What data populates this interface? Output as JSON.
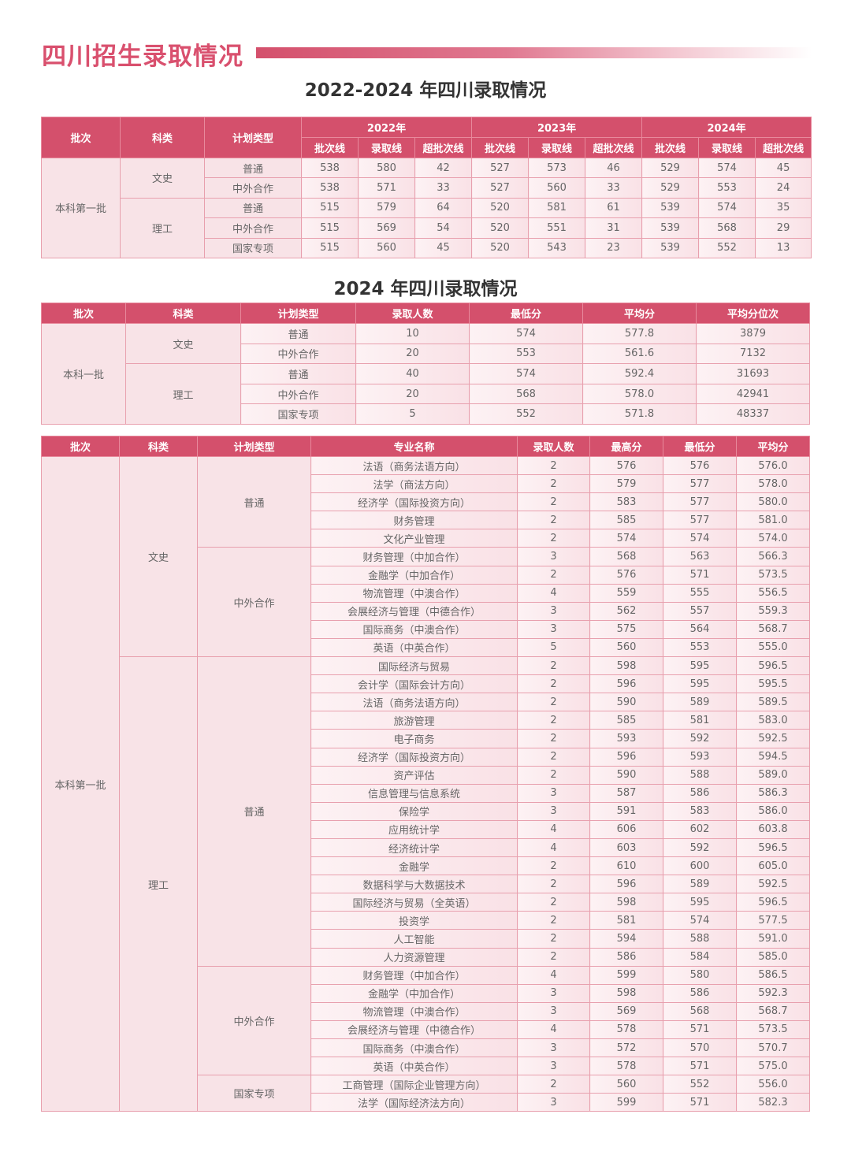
{
  "page": {
    "title": "四川招生录取情况",
    "colors": {
      "accent": "#d4506c",
      "title": "#d9506e",
      "cell_bg": "#fbe9ec"
    }
  },
  "table1": {
    "title": "2022-2024 年四川录取情况",
    "fixed_headers": [
      "批次",
      "科类",
      "计划类型"
    ],
    "years": [
      "2022年",
      "2023年",
      "2024年"
    ],
    "sub_headers": [
      "批次线",
      "录取线",
      "超批次线"
    ],
    "group_cols": 3,
    "rows": [
      [
        "本科第一批",
        "文史",
        "普通",
        "538",
        "580",
        "42",
        "527",
        "573",
        "46",
        "529",
        "574",
        "45"
      ],
      [
        "本科第一批",
        "文史",
        "中外合作",
        "538",
        "571",
        "33",
        "527",
        "560",
        "33",
        "529",
        "553",
        "24"
      ],
      [
        "本科第一批",
        "理工",
        "普通",
        "515",
        "579",
        "64",
        "520",
        "581",
        "61",
        "539",
        "574",
        "35"
      ],
      [
        "本科第一批",
        "理工",
        "中外合作",
        "515",
        "569",
        "54",
        "520",
        "551",
        "31",
        "539",
        "568",
        "29"
      ],
      [
        "本科第一批",
        "理工",
        "国家专项",
        "515",
        "560",
        "45",
        "520",
        "543",
        "23",
        "539",
        "552",
        "13"
      ]
    ]
  },
  "table2": {
    "title": "2024 年四川录取情况",
    "headers": [
      "批次",
      "科类",
      "计划类型",
      "录取人数",
      "最低分",
      "平均分",
      "平均分位次"
    ],
    "group_cols": 2,
    "rows": [
      [
        "本科一批",
        "文史",
        "普通",
        "10",
        "574",
        "577.8",
        "3879"
      ],
      [
        "本科一批",
        "文史",
        "中外合作",
        "20",
        "553",
        "561.6",
        "7132"
      ],
      [
        "本科一批",
        "理工",
        "普通",
        "40",
        "574",
        "592.4",
        "31693"
      ],
      [
        "本科一批",
        "理工",
        "中外合作",
        "20",
        "568",
        "578.0",
        "42941"
      ],
      [
        "本科一批",
        "理工",
        "国家专项",
        "5",
        "552",
        "571.8",
        "48337"
      ]
    ]
  },
  "table3": {
    "headers": [
      "批次",
      "科类",
      "计划类型",
      "专业名称",
      "录取人数",
      "最高分",
      "最低分",
      "平均分"
    ],
    "group_cols": 3,
    "rows": [
      [
        "本科第一批",
        "文史",
        "普通",
        "法语（商务法语方向）",
        "2",
        "576",
        "576",
        "576.0"
      ],
      [
        "本科第一批",
        "文史",
        "普通",
        "法学（商法方向）",
        "2",
        "579",
        "577",
        "578.0"
      ],
      [
        "本科第一批",
        "文史",
        "普通",
        "经济学（国际投资方向）",
        "2",
        "583",
        "577",
        "580.0"
      ],
      [
        "本科第一批",
        "文史",
        "普通",
        "财务管理",
        "2",
        "585",
        "577",
        "581.0"
      ],
      [
        "本科第一批",
        "文史",
        "普通",
        "文化产业管理",
        "2",
        "574",
        "574",
        "574.0"
      ],
      [
        "本科第一批",
        "文史",
        "中外合作",
        "财务管理（中加合作）",
        "3",
        "568",
        "563",
        "566.3"
      ],
      [
        "本科第一批",
        "文史",
        "中外合作",
        "金融学（中加合作）",
        "2",
        "576",
        "571",
        "573.5"
      ],
      [
        "本科第一批",
        "文史",
        "中外合作",
        "物流管理（中澳合作）",
        "4",
        "559",
        "555",
        "556.5"
      ],
      [
        "本科第一批",
        "文史",
        "中外合作",
        "会展经济与管理（中德合作）",
        "3",
        "562",
        "557",
        "559.3"
      ],
      [
        "本科第一批",
        "文史",
        "中外合作",
        "国际商务（中澳合作）",
        "3",
        "575",
        "564",
        "568.7"
      ],
      [
        "本科第一批",
        "文史",
        "中外合作",
        "英语（中英合作）",
        "5",
        "560",
        "553",
        "555.0"
      ],
      [
        "本科第一批",
        "理工",
        "普通",
        "国际经济与贸易",
        "2",
        "598",
        "595",
        "596.5"
      ],
      [
        "本科第一批",
        "理工",
        "普通",
        "会计学（国际会计方向）",
        "2",
        "596",
        "595",
        "595.5"
      ],
      [
        "本科第一批",
        "理工",
        "普通",
        "法语（商务法语方向）",
        "2",
        "590",
        "589",
        "589.5"
      ],
      [
        "本科第一批",
        "理工",
        "普通",
        "旅游管理",
        "2",
        "585",
        "581",
        "583.0"
      ],
      [
        "本科第一批",
        "理工",
        "普通",
        "电子商务",
        "2",
        "593",
        "592",
        "592.5"
      ],
      [
        "本科第一批",
        "理工",
        "普通",
        "经济学（国际投资方向）",
        "2",
        "596",
        "593",
        "594.5"
      ],
      [
        "本科第一批",
        "理工",
        "普通",
        "资产评估",
        "2",
        "590",
        "588",
        "589.0"
      ],
      [
        "本科第一批",
        "理工",
        "普通",
        "信息管理与信息系统",
        "3",
        "587",
        "586",
        "586.3"
      ],
      [
        "本科第一批",
        "理工",
        "普通",
        "保险学",
        "3",
        "591",
        "583",
        "586.0"
      ],
      [
        "本科第一批",
        "理工",
        "普通",
        "应用统计学",
        "4",
        "606",
        "602",
        "603.8"
      ],
      [
        "本科第一批",
        "理工",
        "普通",
        "经济统计学",
        "4",
        "603",
        "592",
        "596.5"
      ],
      [
        "本科第一批",
        "理工",
        "普通",
        "金融学",
        "2",
        "610",
        "600",
        "605.0"
      ],
      [
        "本科第一批",
        "理工",
        "普通",
        "数据科学与大数据技术",
        "2",
        "596",
        "589",
        "592.5"
      ],
      [
        "本科第一批",
        "理工",
        "普通",
        "国际经济与贸易（全英语）",
        "2",
        "598",
        "595",
        "596.5"
      ],
      [
        "本科第一批",
        "理工",
        "普通",
        "投资学",
        "2",
        "581",
        "574",
        "577.5"
      ],
      [
        "本科第一批",
        "理工",
        "普通",
        "人工智能",
        "2",
        "594",
        "588",
        "591.0"
      ],
      [
        "本科第一批",
        "理工",
        "普通",
        "人力资源管理",
        "2",
        "586",
        "584",
        "585.0"
      ],
      [
        "本科第一批",
        "理工",
        "中外合作",
        "财务管理（中加合作）",
        "4",
        "599",
        "580",
        "586.5"
      ],
      [
        "本科第一批",
        "理工",
        "中外合作",
        "金融学（中加合作）",
        "3",
        "598",
        "586",
        "592.3"
      ],
      [
        "本科第一批",
        "理工",
        "中外合作",
        "物流管理（中澳合作）",
        "3",
        "569",
        "568",
        "568.7"
      ],
      [
        "本科第一批",
        "理工",
        "中外合作",
        "会展经济与管理（中德合作）",
        "4",
        "578",
        "571",
        "573.5"
      ],
      [
        "本科第一批",
        "理工",
        "中外合作",
        "国际商务（中澳合作）",
        "3",
        "572",
        "570",
        "570.7"
      ],
      [
        "本科第一批",
        "理工",
        "中外合作",
        "英语（中英合作）",
        "3",
        "578",
        "571",
        "575.0"
      ],
      [
        "本科第一批",
        "理工",
        "国家专项",
        "工商管理（国际企业管理方向）",
        "2",
        "560",
        "552",
        "556.0"
      ],
      [
        "本科第一批",
        "理工",
        "国家专项",
        "法学（国际经济法方向）",
        "3",
        "599",
        "571",
        "582.3"
      ]
    ]
  }
}
